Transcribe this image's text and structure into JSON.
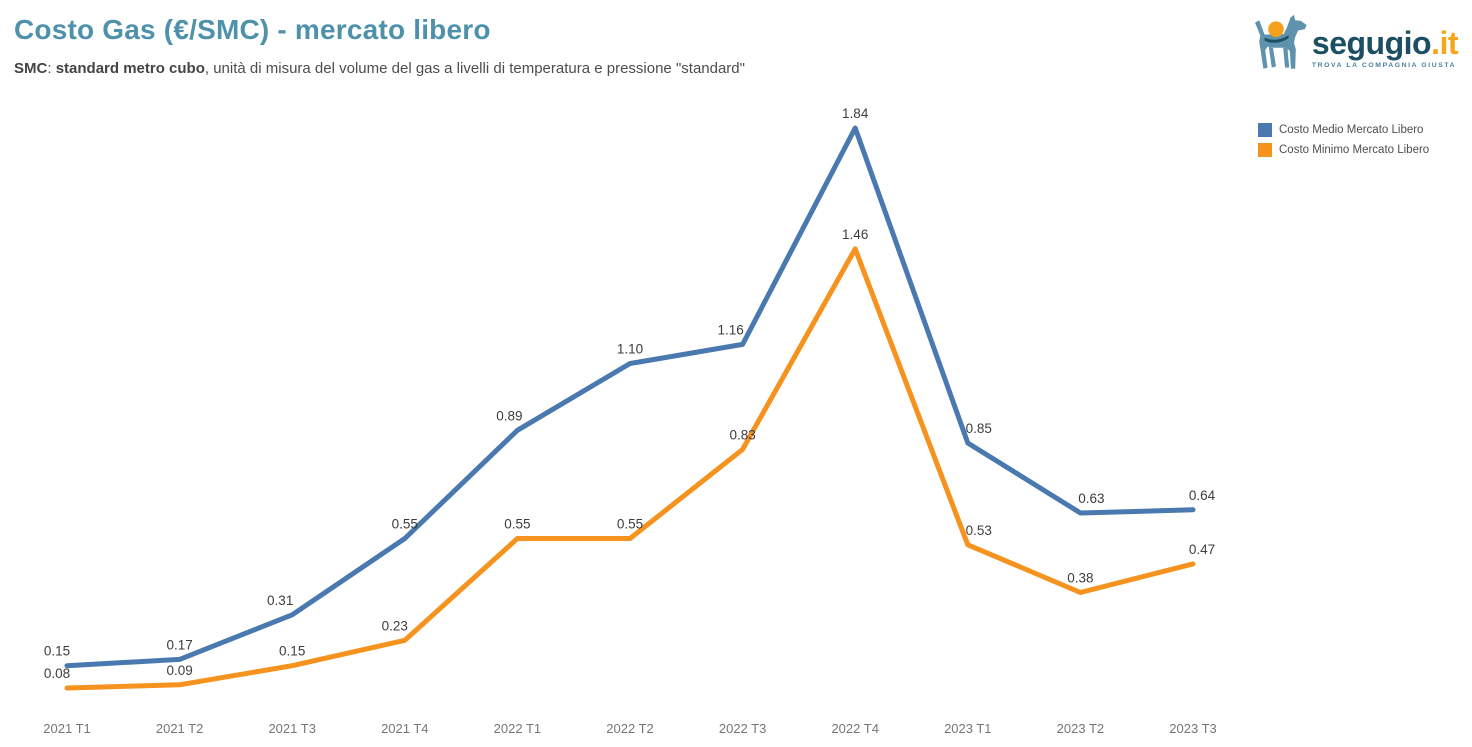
{
  "header": {
    "title": "Costo Gas (€/SMC) - mercato libero",
    "subtitle": {
      "term": "SMC",
      "separator": ": ",
      "definition": "standard metro cubo",
      "rest": ",  unità di misura del volume del gas a livelli di temperatura e pressione \"standard\""
    }
  },
  "logo": {
    "brand": "segugio",
    "suffix": ".it",
    "tagline": "TROVA LA COMPAGNIA GIUSTA",
    "brand_color": "#1c4f63",
    "suffix_color": "#f9a51a",
    "dog_color": "#5f92ad",
    "ball_color": "#f5a01d"
  },
  "legend": {
    "items": [
      {
        "label": "Costo Medio Mercato Libero",
        "color": "#4a79b0"
      },
      {
        "label": "Costo Minimo Mercato Libero",
        "color": "#f6921e"
      }
    ]
  },
  "chart_data": {
    "type": "line",
    "title": "Costo Gas (€/SMC) - mercato libero",
    "categories": [
      "2021 T1",
      "2021 T2",
      "2021 T3",
      "2021 T4",
      "2022 T1",
      "2022 T2",
      "2022 T3",
      "2022 T4",
      "2023 T1",
      "2023 T2",
      "2023 T3"
    ],
    "series": [
      {
        "name": "Costo Medio Mercato Libero",
        "color": "#4a79b0",
        "values": [
          0.15,
          0.17,
          0.31,
          0.55,
          0.89,
          1.1,
          1.16,
          1.84,
          0.85,
          0.63,
          0.64
        ]
      },
      {
        "name": "Costo Minimo Mercato Libero",
        "color": "#f6921e",
        "values": [
          0.08,
          0.09,
          0.15,
          0.23,
          0.55,
          0.55,
          0.83,
          1.46,
          0.53,
          0.38,
          0.47
        ]
      }
    ],
    "xlabel": "",
    "ylabel": "",
    "ylim": [
      0,
      2.0
    ],
    "grid": false,
    "legend_position": "top-right",
    "data_labels": true,
    "value_label_format": "0.00"
  }
}
